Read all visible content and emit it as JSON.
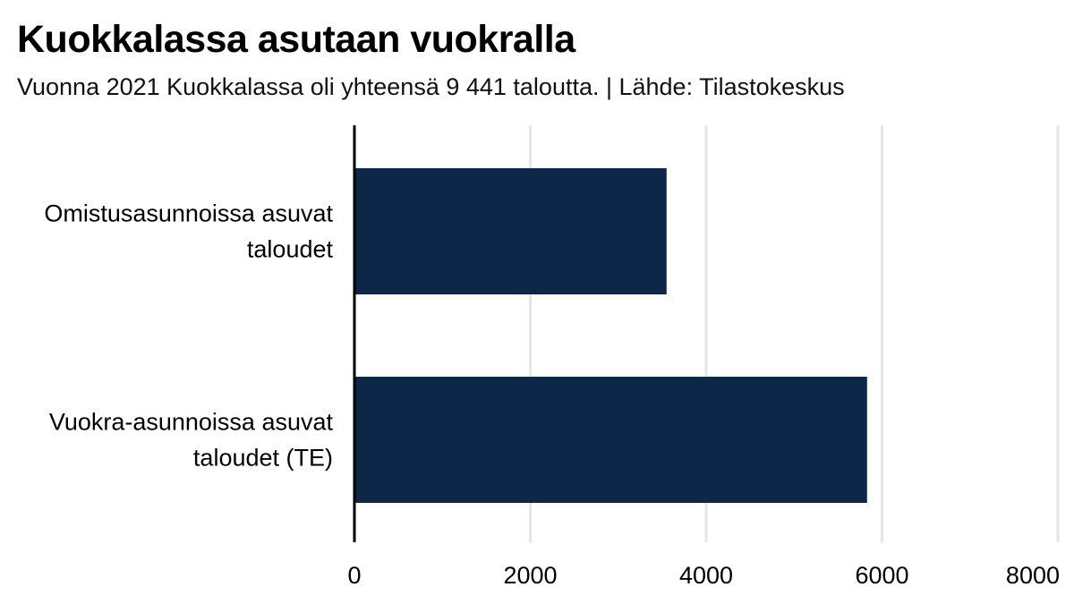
{
  "header": {
    "title": "Kuokkalassa asutaan vuokralla",
    "subtitle": "Vuonna 2021 Kuokkalassa oli yhteensä 9 441 taloutta. | Lähde: Tilastokeskus"
  },
  "colors": {
    "bar": "#0c2748",
    "grid": "#e6e6e6",
    "axis": "#000000",
    "text": "#000000"
  },
  "chart_data": {
    "type": "bar",
    "orientation": "horizontal",
    "categories": [
      [
        "Omistusasunnoissa asuvat",
        "taloudet"
      ],
      [
        "Vuokra-asunnoissa asuvat",
        "taloudet (TE)"
      ]
    ],
    "values": [
      3550,
      5830
    ],
    "xlim": [
      0,
      8000
    ],
    "xticks": [
      0,
      2000,
      4000,
      6000,
      8000
    ],
    "xtick_labels": [
      "0",
      "2000",
      "4000",
      "6000",
      "8000"
    ],
    "grid": true,
    "legend": "none"
  }
}
